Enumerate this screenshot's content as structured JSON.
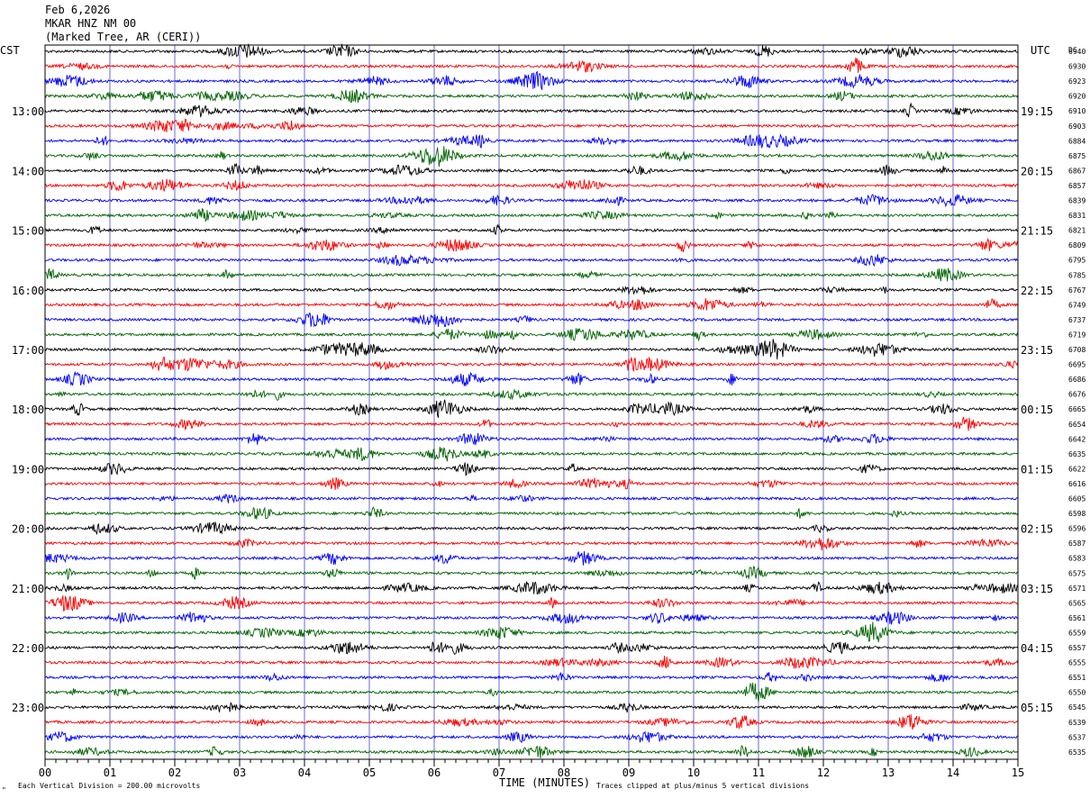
{
  "header": {
    "date": "Feb 6,2026",
    "station": "MKAR HNZ NM 00",
    "location": "(Marked Tree, AR (CERI))"
  },
  "left_axis_label": "CST",
  "right_axis_label": "UTC",
  "dc_label": "DC",
  "footer": {
    "x_axis_title": "TIME (MINUTES)",
    "scale_note": "Each Vertical Division =  200.00 microvolts",
    "clip_note": "Traces clipped at plus/minus 5 vertical divisions",
    "corner_mark": "\""
  },
  "colors": {
    "cycle": [
      "#000000",
      "#ff0000",
      "#0000ff",
      "#006400"
    ],
    "grid": "#6a6acd",
    "frame": "#000000"
  },
  "chart_data": {
    "type": "line",
    "description_kind": "helicorder",
    "x_ticks": [
      "00",
      "01",
      "02",
      "03",
      "04",
      "05",
      "06",
      "07",
      "08",
      "09",
      "10",
      "11",
      "12",
      "13",
      "14",
      "15"
    ],
    "x_range_minutes": [
      0,
      15
    ],
    "left_time_labels": [
      {
        "row": 4,
        "text": "13:00"
      },
      {
        "row": 8,
        "text": "14:00"
      },
      {
        "row": 12,
        "text": "15:00"
      },
      {
        "row": 16,
        "text": "16:00"
      },
      {
        "row": 20,
        "text": "17:00"
      },
      {
        "row": 24,
        "text": "18:00"
      },
      {
        "row": 28,
        "text": "19:00"
      },
      {
        "row": 32,
        "text": "20:00"
      },
      {
        "row": 36,
        "text": "21:00"
      },
      {
        "row": 40,
        "text": "22:00"
      },
      {
        "row": 44,
        "text": "23:00"
      }
    ],
    "right_time_labels": [
      {
        "row": 4,
        "text": "19:15"
      },
      {
        "row": 8,
        "text": "20:15"
      },
      {
        "row": 12,
        "text": "21:15"
      },
      {
        "row": 16,
        "text": "22:15"
      },
      {
        "row": 20,
        "text": "23:15"
      },
      {
        "row": 24,
        "text": "00:15"
      },
      {
        "row": 28,
        "text": "01:15"
      },
      {
        "row": 32,
        "text": "02:15"
      },
      {
        "row": 36,
        "text": "03:15"
      },
      {
        "row": 40,
        "text": "04:15"
      },
      {
        "row": 44,
        "text": "05:15"
      }
    ],
    "dc_values": [
      "6940",
      "6930",
      "6923",
      "6920",
      "6910",
      "6903",
      "6884",
      "6875",
      "6867",
      "6857",
      "6839",
      "6831",
      "6821",
      "6809",
      "6795",
      "6785",
      "6767",
      "6749",
      "6737",
      "6719",
      "6708",
      "6695",
      "6686",
      "6676",
      "6665",
      "6654",
      "6642",
      "6635",
      "6622",
      "6616",
      "6605",
      "6598",
      "6596",
      "6587",
      "6583",
      "6575",
      "6571",
      "6565",
      "6561",
      "6559",
      "6557",
      "6555",
      "6551",
      "6550",
      "6545",
      "6539",
      "6537",
      "6535"
    ]
  }
}
